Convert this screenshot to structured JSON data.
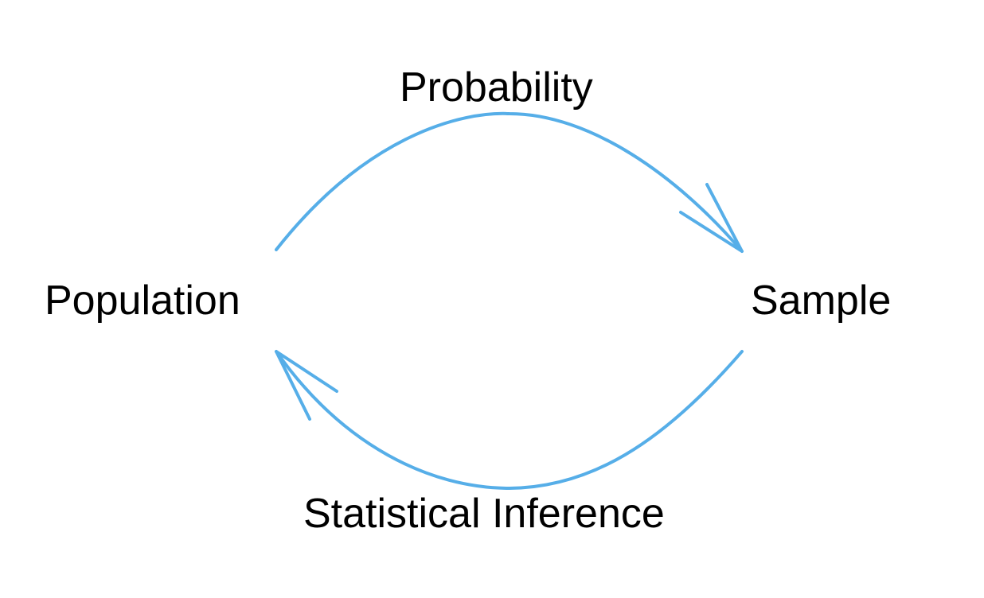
{
  "diagram": {
    "labels": {
      "probability": "Probability",
      "population": "Population",
      "sample": "Sample",
      "statistical_inference": "Statistical Inference"
    },
    "arrow_color": "#56aee8",
    "text_color": "#000000"
  }
}
